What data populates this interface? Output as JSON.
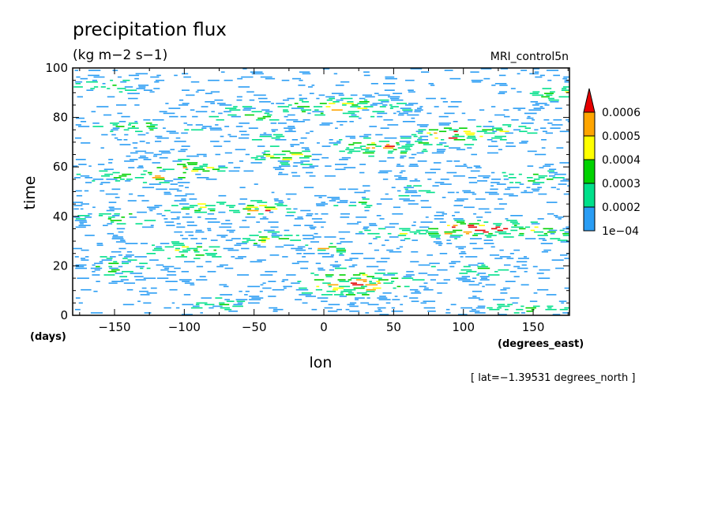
{
  "chart_data": {
    "type": "heatmap",
    "title": "precipitation flux",
    "units": "(kg m−2 s−1)",
    "dataset_label": "MRI_control5n",
    "xlabel": "lon",
    "ylabel": "time",
    "x_units": "(degrees_east)",
    "y_units": "(days)",
    "footnote": "[ lat=−1.39531 degrees_north ]",
    "xlim": [
      -180,
      176
    ],
    "ylim": [
      0,
      100
    ],
    "x_ticks": [
      {
        "value": -150,
        "label": "−150"
      },
      {
        "value": -100,
        "label": "−100"
      },
      {
        "value": -50,
        "label": "−50"
      },
      {
        "value": 0,
        "label": "0"
      },
      {
        "value": 50,
        "label": "50"
      },
      {
        "value": 100,
        "label": "100"
      },
      {
        "value": 150,
        "label": "150"
      }
    ],
    "y_ticks": [
      {
        "value": 0,
        "label": "0"
      },
      {
        "value": 20,
        "label": "20"
      },
      {
        "value": 40,
        "label": "40"
      },
      {
        "value": 60,
        "label": "60"
      },
      {
        "value": 80,
        "label": "80"
      },
      {
        "value": 100,
        "label": "100"
      }
    ],
    "colorbar": {
      "levels": [
        {
          "label": "1e−04",
          "value": 0.0001
        },
        {
          "label": "0.0002",
          "value": 0.0002
        },
        {
          "label": "0.0003",
          "value": 0.0003
        },
        {
          "label": "0.0004",
          "value": 0.0004
        },
        {
          "label": "0.0005",
          "value": 0.0005
        },
        {
          "label": "0.0006",
          "value": 0.0006
        }
      ],
      "colors": [
        "#2a9df4",
        "#00e08a",
        "#00d200",
        "#ffff00",
        "#ffa500",
        "#e60000"
      ],
      "extend": "max"
    },
    "clusters": [
      {
        "lon": -160,
        "t": 93,
        "lon_w": 40,
        "t_w": 4,
        "i": 0.6
      },
      {
        "lon": -130,
        "t": 76,
        "lon_w": 50,
        "t_w": 4,
        "i": 0.55
      },
      {
        "lon": -155,
        "t": 57,
        "lon_w": 40,
        "t_w": 4,
        "i": 0.6
      },
      {
        "lon": -125,
        "t": 56,
        "lon_w": 35,
        "t_w": 3,
        "i": 0.75
      },
      {
        "lon": -97,
        "t": 60,
        "lon_w": 30,
        "t_w": 4,
        "i": 0.85
      },
      {
        "lon": -85,
        "t": 44,
        "lon_w": 40,
        "t_w": 3,
        "i": 0.75
      },
      {
        "lon": -150,
        "t": 40,
        "lon_w": 40,
        "t_w": 4,
        "i": 0.6
      },
      {
        "lon": -100,
        "t": 26,
        "lon_w": 40,
        "t_w": 5,
        "i": 0.7
      },
      {
        "lon": -150,
        "t": 20,
        "lon_w": 35,
        "t_w": 6,
        "i": 0.55
      },
      {
        "lon": -60,
        "t": 81,
        "lon_w": 40,
        "t_w": 5,
        "i": 0.6
      },
      {
        "lon": -40,
        "t": 71,
        "lon_w": 30,
        "t_w": 4,
        "i": 0.5
      },
      {
        "lon": -30,
        "t": 64,
        "lon_w": 40,
        "t_w": 5,
        "i": 0.65
      },
      {
        "lon": -45,
        "t": 43,
        "lon_w": 40,
        "t_w": 4,
        "i": 0.75
      },
      {
        "lon": -40,
        "t": 31,
        "lon_w": 30,
        "t_w": 4,
        "i": 0.7
      },
      {
        "lon": 0,
        "t": 27,
        "lon_w": 25,
        "t_w": 3,
        "i": 0.7
      },
      {
        "lon": 20,
        "t": 13,
        "lon_w": 50,
        "t_w": 7,
        "i": 0.8
      },
      {
        "lon": 10,
        "t": 84,
        "lon_w": 60,
        "t_w": 5,
        "i": 0.7
      },
      {
        "lon": 40,
        "t": 68,
        "lon_w": 50,
        "t_w": 4,
        "i": 0.8
      },
      {
        "lon": 20,
        "t": 45,
        "lon_w": 30,
        "t_w": 4,
        "i": 0.55
      },
      {
        "lon": 55,
        "t": 33,
        "lon_w": 40,
        "t_w": 4,
        "i": 0.6
      },
      {
        "lon": 95,
        "t": 73,
        "lon_w": 40,
        "t_w": 4,
        "i": 0.85
      },
      {
        "lon": 130,
        "t": 75,
        "lon_w": 30,
        "t_w": 4,
        "i": 0.6
      },
      {
        "lon": 150,
        "t": 56,
        "lon_w": 40,
        "t_w": 5,
        "i": 0.6
      },
      {
        "lon": 110,
        "t": 35,
        "lon_w": 60,
        "t_w": 4,
        "i": 0.95
      },
      {
        "lon": 160,
        "t": 33,
        "lon_w": 30,
        "t_w": 4,
        "i": 0.6
      },
      {
        "lon": 100,
        "t": 18,
        "lon_w": 40,
        "t_w": 4,
        "i": 0.55
      },
      {
        "lon": 145,
        "t": 3,
        "lon_w": 50,
        "t_w": 3,
        "i": 0.6
      },
      {
        "lon": 165,
        "t": 90,
        "lon_w": 25,
        "t_w": 5,
        "i": 0.7
      },
      {
        "lon": -75,
        "t": 5,
        "lon_w": 40,
        "t_w": 4,
        "i": 0.5
      },
      {
        "lon": 60,
        "t": 50,
        "lon_w": 30,
        "t_w": 4,
        "i": 0.5
      }
    ]
  }
}
